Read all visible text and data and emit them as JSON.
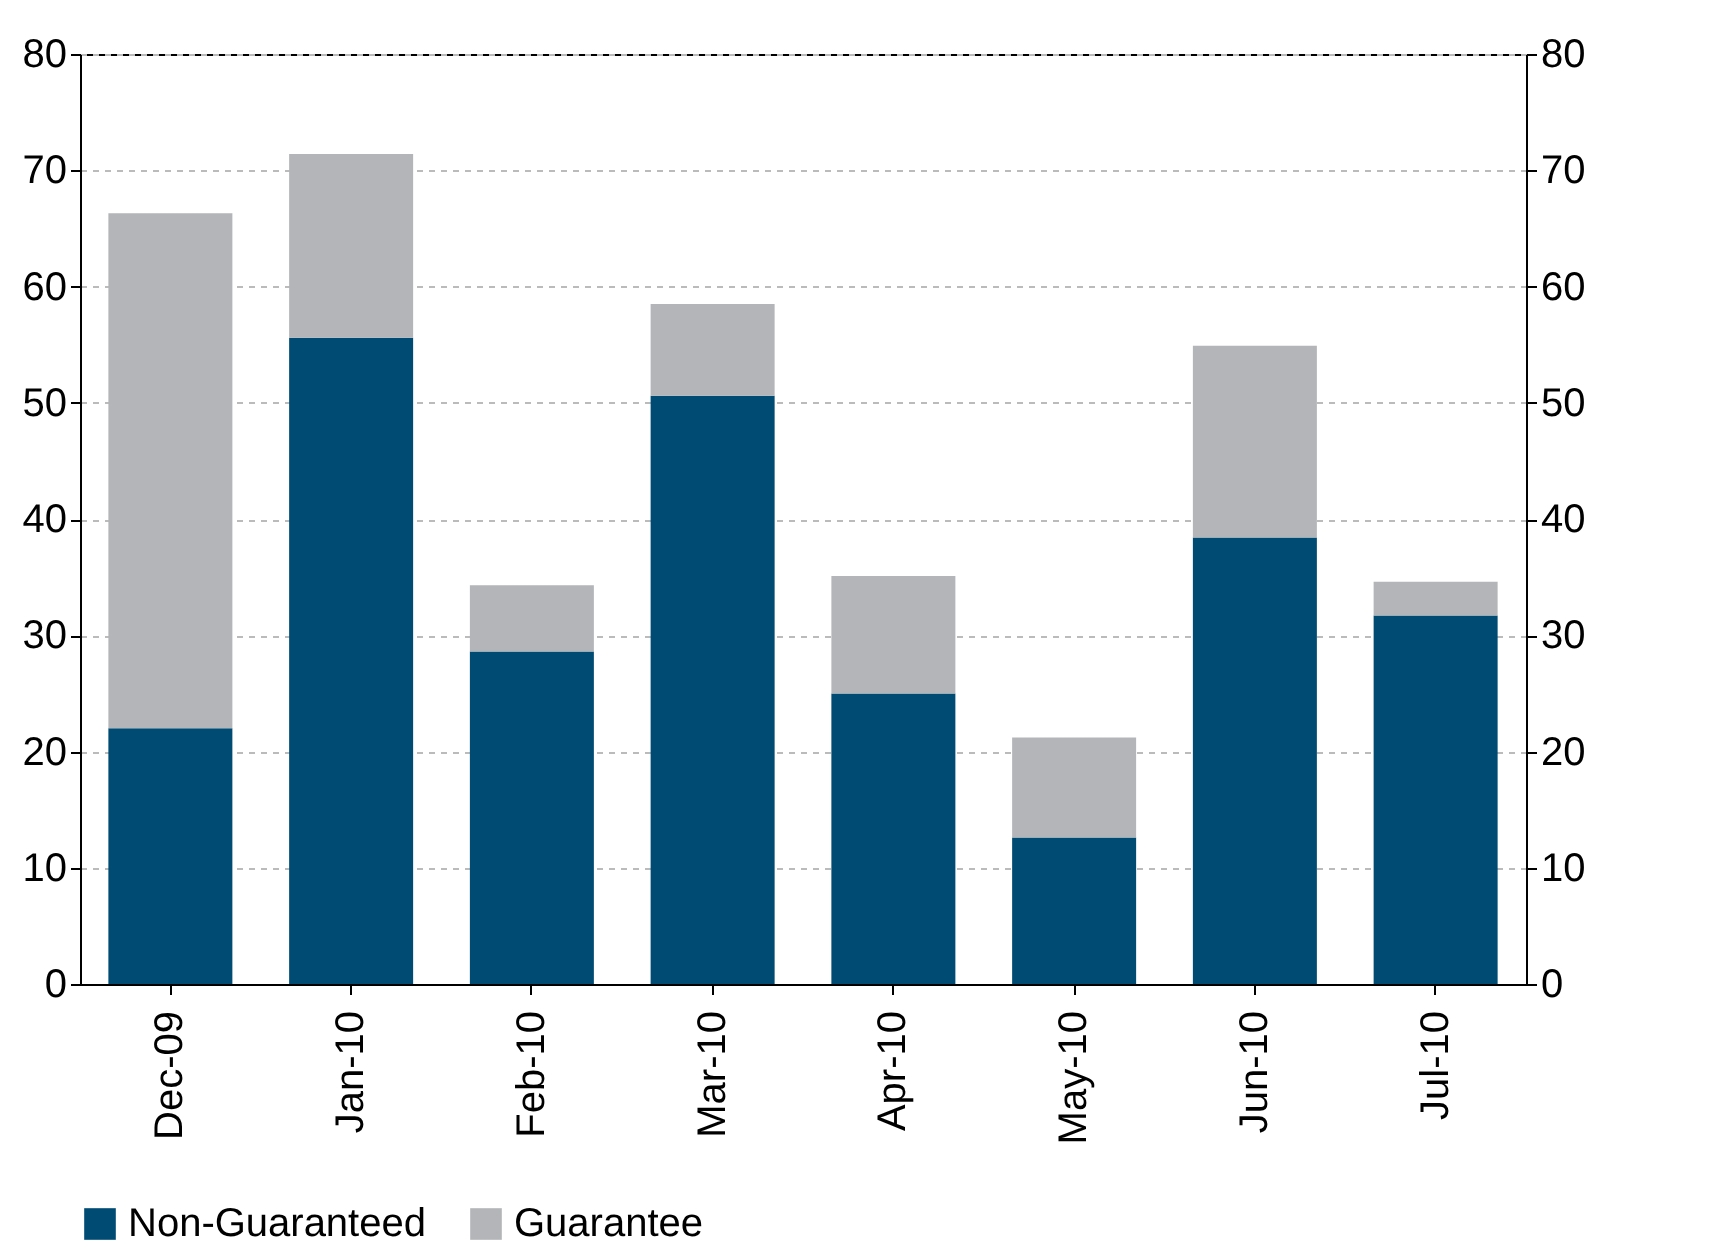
{
  "chart_data": {
    "type": "bar",
    "stacked": true,
    "categories": [
      "Dec-09",
      "Jan-10",
      "Feb-10",
      "Mar-10",
      "Apr-10",
      "May-10",
      "Jun-10",
      "Jul-10"
    ],
    "series": [
      {
        "name": "Non-Guaranteed",
        "color": "#004b73",
        "values": [
          22.0,
          55.6,
          28.6,
          50.6,
          25.0,
          12.6,
          38.4,
          31.7
        ]
      },
      {
        "name": "Guarantee",
        "color": "#b3b5b8",
        "values": [
          44.3,
          15.8,
          5.7,
          7.9,
          10.1,
          8.6,
          16.5,
          2.9
        ]
      }
    ],
    "ylim": [
      0,
      80
    ],
    "yticks": [
      0,
      10,
      20,
      30,
      40,
      50,
      60,
      70,
      80
    ],
    "y2lim": [
      0,
      80
    ],
    "y2ticks": [
      0,
      10,
      20,
      30,
      40,
      50,
      60,
      70,
      80
    ],
    "grid": "y",
    "legend": "bottom left"
  }
}
